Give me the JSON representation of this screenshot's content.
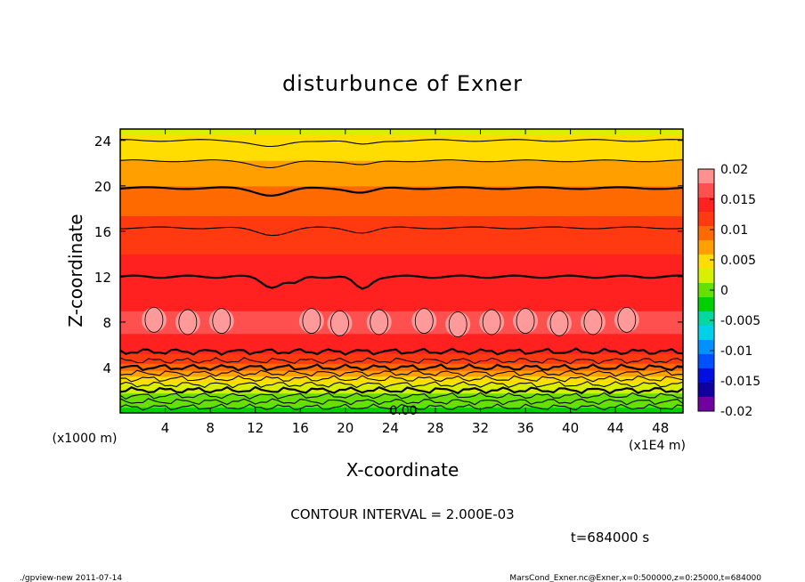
{
  "chart_data": {
    "type": "heatmap",
    "title": "disturbunce of Exner",
    "xlabel": "X-coordinate",
    "ylabel": "Z-coordinate",
    "x_unit": "(x1E4 m)",
    "y_unit": "(x1000 m)",
    "xlim": [
      0,
      50
    ],
    "ylim": [
      0,
      25
    ],
    "x_ticks": [
      4,
      8,
      12,
      16,
      20,
      24,
      28,
      32,
      36,
      40,
      44,
      48
    ],
    "y_ticks": [
      4,
      8,
      12,
      16,
      20,
      24
    ],
    "colorbar_ticks": [
      "0.02",
      "0.015",
      "0.01",
      "0.005",
      "0",
      "-0.005",
      "-0.01",
      "-0.015",
      "-0.02"
    ],
    "colorbar_levels": [
      {
        "value": 0.02,
        "color": "#ff9090"
      },
      {
        "value": 0.0175,
        "color": "#ff5050"
      },
      {
        "value": 0.015,
        "color": "#ff2020"
      },
      {
        "value": 0.0125,
        "color": "#ff3a10"
      },
      {
        "value": 0.01,
        "color": "#ff6a00"
      },
      {
        "value": 0.0075,
        "color": "#ffa000"
      },
      {
        "value": 0.005,
        "color": "#ffdd00"
      },
      {
        "value": 0.0025,
        "color": "#d8f000"
      },
      {
        "value": 0.0,
        "color": "#66e000"
      },
      {
        "value": -0.0025,
        "color": "#00d000"
      },
      {
        "value": -0.005,
        "color": "#00d8a0"
      },
      {
        "value": -0.0075,
        "color": "#00d0e8"
      },
      {
        "value": -0.01,
        "color": "#0090ff"
      },
      {
        "value": -0.0125,
        "color": "#0050ff"
      },
      {
        "value": -0.015,
        "color": "#0010e0"
      },
      {
        "value": -0.0175,
        "color": "#1000a0"
      },
      {
        "value": -0.02,
        "color": "#7000a0"
      }
    ],
    "z_profile": [
      {
        "z": 0.0,
        "value": -0.001
      },
      {
        "z": 0.5,
        "value": 0.0
      },
      {
        "z": 1.0,
        "value": 0.001
      },
      {
        "z": 1.5,
        "value": 0.002
      },
      {
        "z": 2.0,
        "value": 0.003
      },
      {
        "z": 2.5,
        "value": 0.0045
      },
      {
        "z": 3.0,
        "value": 0.006
      },
      {
        "z": 3.5,
        "value": 0.0085
      },
      {
        "z": 4.0,
        "value": 0.011
      },
      {
        "z": 5.0,
        "value": 0.0145
      },
      {
        "z": 6.0,
        "value": 0.0165
      },
      {
        "z": 7.0,
        "value": 0.0175
      },
      {
        "z": 8.0,
        "value": 0.018
      },
      {
        "z": 9.0,
        "value": 0.0175
      },
      {
        "z": 10.0,
        "value": 0.0165
      },
      {
        "z": 12.0,
        "value": 0.016
      },
      {
        "z": 14.0,
        "value": 0.015
      },
      {
        "z": 16.0,
        "value": 0.0135
      },
      {
        "z": 18.0,
        "value": 0.012
      },
      {
        "z": 20.0,
        "value": 0.01
      },
      {
        "z": 22.0,
        "value": 0.0078
      },
      {
        "z": 24.0,
        "value": 0.0055
      },
      {
        "z": 25.0,
        "value": 0.0045
      }
    ],
    "contour_interval": "2.000E-03",
    "contour_label": "0.00",
    "annotations": {
      "contour_interval_text": "CONTOUR INTERVAL = 2.000E-03",
      "time_text": "t=684000 s",
      "footer_left": "./gpview-new  2011-07-14",
      "footer_right": "MarsCond_Exner.nc@Exner,x=0:500000,z=0:25000,t=684000"
    }
  }
}
